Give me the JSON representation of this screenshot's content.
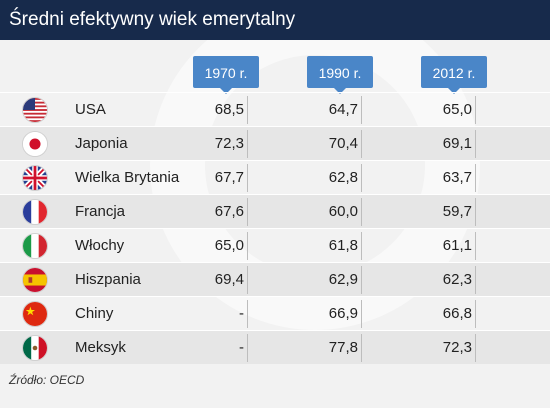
{
  "title": "Średni efektywny wiek emerytalny",
  "source": "Źródło: OECD",
  "chart_data": {
    "type": "table",
    "title": "Średni efektywny wiek emerytalny",
    "columns": [
      "1970 r.",
      "1990 r.",
      "2012 r."
    ],
    "rows": [
      {
        "country": "USA",
        "flag": "usa-flag-icon",
        "values": [
          "68,5",
          "64,7",
          "65,0"
        ]
      },
      {
        "country": "Japonia",
        "flag": "japan-flag-icon",
        "values": [
          "72,3",
          "70,4",
          "69,1"
        ]
      },
      {
        "country": "Wielka Brytania",
        "flag": "uk-flag-icon",
        "values": [
          "67,7",
          "62,8",
          "63,7"
        ]
      },
      {
        "country": "Francja",
        "flag": "france-flag-icon",
        "values": [
          "67,6",
          "60,0",
          "59,7"
        ]
      },
      {
        "country": "Włochy",
        "flag": "italy-flag-icon",
        "values": [
          "65,0",
          "61,8",
          "61,1"
        ]
      },
      {
        "country": "Hiszpania",
        "flag": "spain-flag-icon",
        "values": [
          "69,4",
          "62,9",
          "62,3"
        ]
      },
      {
        "country": "Chiny",
        "flag": "china-flag-icon",
        "values": [
          "-",
          "66,9",
          "66,8"
        ]
      },
      {
        "country": "Meksyk",
        "flag": "mexico-flag-icon",
        "values": [
          "-",
          "77,8",
          "72,3"
        ]
      }
    ]
  },
  "colors": {
    "header_bg": "#172a4b",
    "column_header_bg": "#4a86c8",
    "panel_bg": "#f2f2f2",
    "alt_row_bg": "#e6e6e6"
  }
}
